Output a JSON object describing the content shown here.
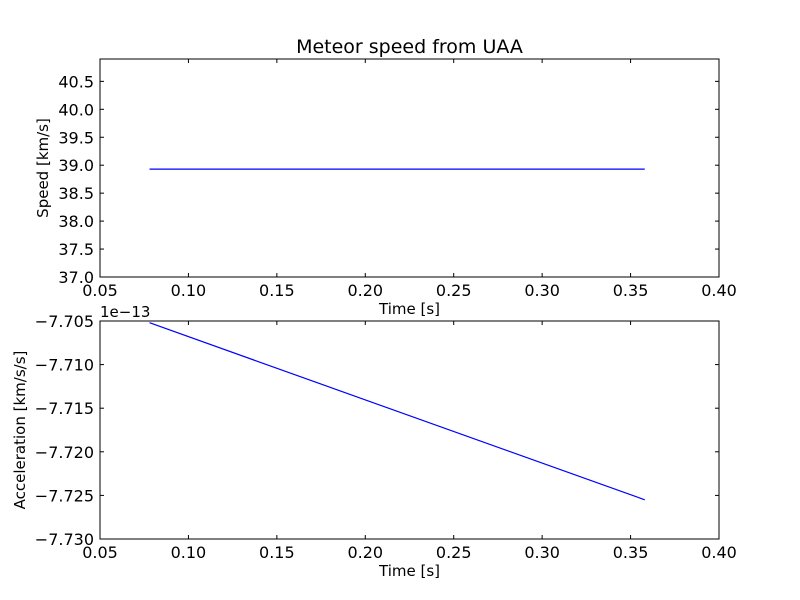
{
  "chart_data": [
    {
      "type": "line",
      "title": "Meteor speed from  UAA",
      "xlabel": "Time [s]",
      "ylabel": "Speed [km/s]",
      "xlim": [
        0.05,
        0.4
      ],
      "ylim": [
        37.0,
        40.9
      ],
      "x_ticks": [
        0.05,
        0.1,
        0.15,
        0.2,
        0.25,
        0.3,
        0.35,
        0.4
      ],
      "x_tick_labels": [
        "0.05",
        "0.10",
        "0.15",
        "0.20",
        "0.25",
        "0.30",
        "0.35",
        "0.40"
      ],
      "y_ticks": [
        37.0,
        37.5,
        38.0,
        38.5,
        39.0,
        39.5,
        40.0,
        40.5
      ],
      "y_tick_labels": [
        "37.0",
        "37.5",
        "38.0",
        "38.5",
        "39.0",
        "39.5",
        "40.0",
        "40.5"
      ],
      "grid": false,
      "series": [
        {
          "x": [
            0.078,
            0.358
          ],
          "y": [
            38.93,
            38.93
          ],
          "color": "#0000ff"
        }
      ]
    },
    {
      "type": "line",
      "title": "",
      "xlabel": "Time [s]",
      "ylabel": "Acceleration [km/s/s]",
      "offset_label": "1e−13",
      "xlim": [
        0.05,
        0.4
      ],
      "ylim": [
        -7.73,
        -7.705
      ],
      "x_ticks": [
        0.05,
        0.1,
        0.15,
        0.2,
        0.25,
        0.3,
        0.35,
        0.4
      ],
      "x_tick_labels": [
        "0.05",
        "0.10",
        "0.15",
        "0.20",
        "0.25",
        "0.30",
        "0.35",
        "0.40"
      ],
      "y_ticks": [
        -7.73,
        -7.725,
        -7.72,
        -7.715,
        -7.71,
        -7.705
      ],
      "y_tick_labels": [
        "−7.730",
        "−7.725",
        "−7.720",
        "−7.715",
        "−7.710",
        "−7.705"
      ],
      "grid": false,
      "series": [
        {
          "x": [
            0.078,
            0.358
          ],
          "y": [
            -7.7052,
            -7.7255
          ],
          "color": "#0000ff"
        }
      ]
    }
  ]
}
